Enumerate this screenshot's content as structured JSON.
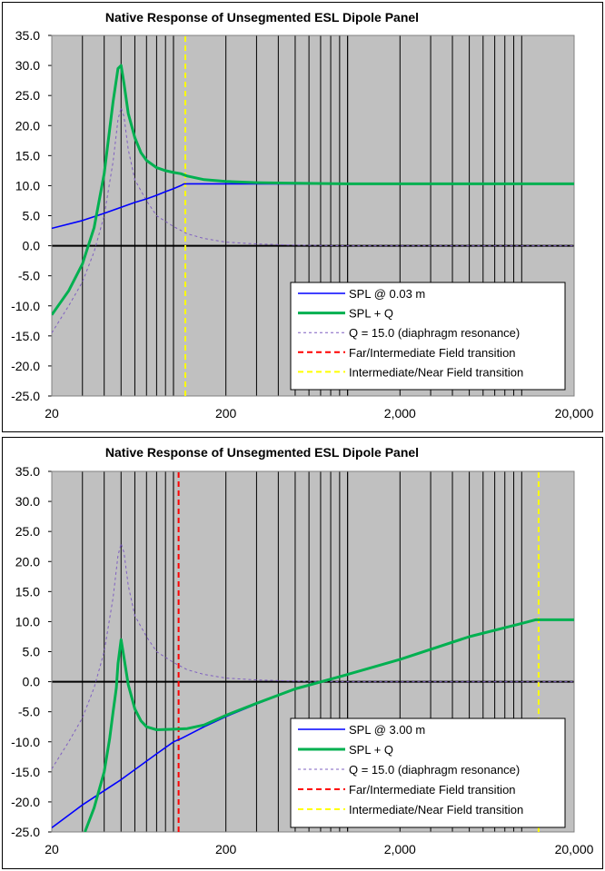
{
  "chart_data": [
    {
      "type": "line",
      "title": "Native Response of Unsegmented ESL Dipole Panel",
      "xscale": "log",
      "xlim": [
        20,
        20000
      ],
      "ylim": [
        -25,
        35
      ],
      "ytick_labels": [
        "35.0",
        "30.0",
        "25.0",
        "20.0",
        "15.0",
        "10.0",
        "5.0",
        "0.0",
        "-5.0",
        "-10.0",
        "-15.0",
        "-20.0",
        "-25.0"
      ],
      "xtick_labels": [
        "20",
        "200",
        "2,000",
        "20,000"
      ],
      "legend_position": "bottom-right",
      "series": [
        {
          "name": "SPL @ 0.03 m",
          "color": "#0000ff",
          "style": "solid",
          "x": [
            20,
            30,
            40,
            50,
            60,
            70,
            80,
            90,
            100,
            110,
            115,
            130,
            160,
            200,
            300,
            500,
            1000,
            5000,
            20000
          ],
          "y": [
            2.9,
            4.2,
            5.4,
            6.4,
            7.2,
            7.8,
            8.4,
            9.0,
            9.5,
            10.0,
            10.3,
            10.3,
            10.3,
            10.3,
            10.3,
            10.3,
            10.3,
            10.3,
            10.3
          ]
        },
        {
          "name": "SPL + Q",
          "color": "#00b050",
          "style": "solid-thick",
          "x": [
            20,
            25,
            30,
            35,
            40,
            45,
            48,
            50,
            52,
            55,
            60,
            65,
            70,
            80,
            90,
            100,
            110,
            120,
            150,
            200,
            300,
            500,
            1000,
            5000,
            20000
          ],
          "y": [
            -11.5,
            -7.5,
            -3.0,
            3.0,
            12.0,
            24.0,
            29.5,
            30.0,
            27.0,
            22.0,
            18.0,
            15.5,
            14.2,
            13.0,
            12.5,
            12.2,
            12.0,
            11.6,
            11.0,
            10.7,
            10.5,
            10.4,
            10.3,
            10.3,
            10.3
          ]
        },
        {
          "name": "Q = 15.0 (diaphragm resonance)",
          "color": "#7f5fc0",
          "style": "dashed",
          "x": [
            20,
            25,
            30,
            35,
            40,
            45,
            48,
            50,
            52,
            55,
            60,
            70,
            80,
            100,
            120,
            150,
            200,
            300,
            500,
            1000,
            5000,
            20000
          ],
          "y": [
            -14.5,
            -10.0,
            -6.0,
            -1.0,
            5.0,
            14.0,
            21.0,
            23.0,
            21.5,
            16.0,
            11.0,
            7.5,
            5.0,
            3.2,
            2.0,
            1.2,
            0.6,
            0.3,
            0.1,
            0.0,
            0.0,
            0.0
          ]
        },
        {
          "name": "Far/Intermediate Field transition",
          "color": "#ff0000",
          "style": "dashed",
          "x": [],
          "y": []
        },
        {
          "name": "Intermediate/Near Field transition",
          "color": "#ffff00",
          "style": "dashed",
          "x": [
            117,
            117
          ],
          "y": [
            -25,
            35
          ]
        }
      ]
    },
    {
      "type": "line",
      "title": "Native Response of Unsegmented ESL Dipole Panel",
      "xscale": "log",
      "xlim": [
        20,
        20000
      ],
      "ylim": [
        -25,
        35
      ],
      "ytick_labels": [
        "35.0",
        "30.0",
        "25.0",
        "20.0",
        "15.0",
        "10.0",
        "5.0",
        "0.0",
        "-5.0",
        "-10.0",
        "-15.0",
        "-20.0",
        "-25.0"
      ],
      "xtick_labels": [
        "20",
        "200",
        "2,000",
        "20,000"
      ],
      "legend_position": "bottom-right",
      "series": [
        {
          "name": "SPL @ 3.00 m",
          "color": "#0000ff",
          "style": "solid",
          "x": [
            20,
            30,
            50,
            80,
            100,
            110,
            150,
            200,
            300,
            500,
            1000,
            2000,
            5000,
            10000,
            12000,
            13000,
            20000
          ],
          "y": [
            -24.3,
            -20.5,
            -16.3,
            -12.0,
            -10.0,
            -9.5,
            -7.5,
            -5.8,
            -3.7,
            -1.2,
            1.2,
            3.7,
            7.5,
            9.7,
            10.3,
            10.3,
            10.3
          ]
        },
        {
          "name": "SPL + Q",
          "color": "#00b050",
          "style": "solid-thick",
          "x": [
            31,
            35,
            40,
            43,
            45,
            47,
            48,
            50,
            52,
            55,
            60,
            65,
            70,
            80,
            100,
            120,
            150,
            200,
            300,
            500,
            1000,
            2000,
            5000,
            10000,
            12000,
            13000,
            20000
          ],
          "y": [
            -25.0,
            -21.0,
            -15.0,
            -9.5,
            -5.0,
            -1.0,
            3.0,
            7.0,
            4.0,
            -0.5,
            -4.5,
            -6.5,
            -7.5,
            -8.0,
            -7.9,
            -7.8,
            -7.2,
            -5.6,
            -3.6,
            -1.2,
            1.2,
            3.7,
            7.5,
            9.7,
            10.3,
            10.3,
            10.3
          ]
        },
        {
          "name": "Q = 15.0 (diaphragm resonance)",
          "color": "#7f5fc0",
          "style": "dashed",
          "x": [
            20,
            25,
            30,
            35,
            40,
            45,
            48,
            50,
            52,
            55,
            60,
            70,
            80,
            100,
            120,
            150,
            200,
            300,
            500,
            1000,
            5000,
            20000
          ],
          "y": [
            -14.5,
            -10.0,
            -6.0,
            -1.0,
            5.0,
            14.0,
            21.0,
            23.0,
            21.5,
            16.0,
            11.0,
            7.5,
            5.0,
            3.2,
            2.0,
            1.2,
            0.6,
            0.3,
            0.1,
            0.0,
            0.0,
            0.0
          ]
        },
        {
          "name": "Far/Intermediate Field transition",
          "color": "#ff0000",
          "style": "dashed",
          "x": [
            107,
            107
          ],
          "y": [
            -25,
            35
          ]
        },
        {
          "name": "Intermediate/Near Field transition",
          "color": "#ffff00",
          "style": "dashed",
          "x": [
            12500,
            12500
          ],
          "y": [
            -25,
            35
          ]
        }
      ]
    }
  ]
}
